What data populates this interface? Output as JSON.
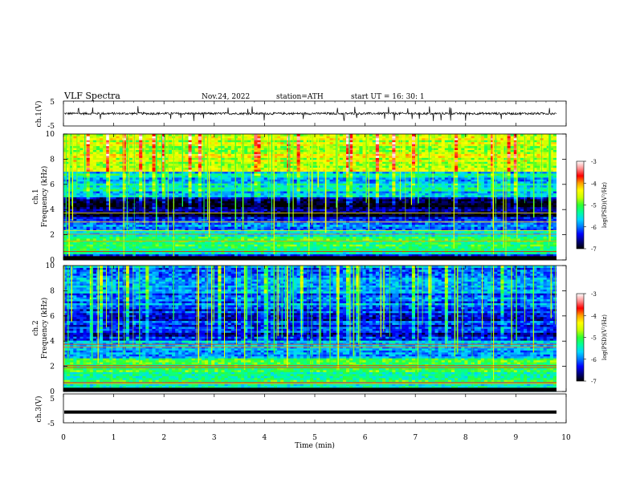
{
  "header": {
    "title": "VLF  Spectra",
    "date": "Nov.24, 2022",
    "station": "station=ATH",
    "start": "start  UT  =   16: 30: 1"
  },
  "colors": {
    "ink": "#000000",
    "colormap": [
      "#000000",
      "#00007a",
      "#0000ff",
      "#0078ff",
      "#00d7ff",
      "#00ff9a",
      "#30ff30",
      "#c8ff00",
      "#ffff00",
      "#ffa000",
      "#ff0000",
      "#ff9090",
      "#ffffff"
    ]
  },
  "chart_data": [
    {
      "type": "line",
      "ylabel": "ch.1(V)",
      "ylim": [
        -5,
        5
      ],
      "yticks": [
        "5",
        "-5"
      ],
      "xlim": [
        0,
        10
      ],
      "description_values": {
        "baseline": 0,
        "typical_amplitude": 1,
        "spike_max": 3
      }
    },
    {
      "type": "heatmap",
      "ylabel": "ch.1\nFrequency (kHz)",
      "ylabel_lines": [
        "ch.1",
        "Frequency (kHz)"
      ],
      "ylim": [
        0,
        10
      ],
      "yticks": [
        "0",
        "2",
        "4",
        "6",
        "8",
        "10"
      ],
      "xlim": [
        0,
        10
      ],
      "colorbar": {
        "label": "log(PSD)(V²/Hz)",
        "range": [
          -7,
          -3
        ],
        "ticks": [
          "-3",
          "-4",
          "-5",
          "-6",
          "-7"
        ]
      },
      "bands": [
        {
          "from": 0,
          "to": 0.5,
          "level": -6.5
        },
        {
          "from": 0.5,
          "to": 2.3,
          "level": -5.3
        },
        {
          "from": 2.3,
          "to": 3.5,
          "level": -6.1
        },
        {
          "from": 3.5,
          "to": 5.0,
          "level": -6.8
        },
        {
          "from": 5.0,
          "to": 7.0,
          "level": -5.6
        },
        {
          "from": 7.0,
          "to": 10.0,
          "level": -4.6
        }
      ]
    },
    {
      "type": "heatmap",
      "ylabel": "ch.2\nFrequency (kHz)",
      "ylabel_lines": [
        "ch.2",
        "Frequency (kHz)"
      ],
      "ylim": [
        0,
        10
      ],
      "yticks": [
        "0",
        "2",
        "4",
        "6",
        "8",
        "10"
      ],
      "xlim": [
        0,
        10
      ],
      "colorbar": {
        "label": "log(PSD)(V²/Hz)",
        "range": [
          -7,
          -3
        ],
        "ticks": [
          "-3",
          "-4",
          "-5",
          "-6",
          "-7"
        ]
      },
      "bands": [
        {
          "from": 0,
          "to": 0.6,
          "level": -5.6
        },
        {
          "from": 0.6,
          "to": 2.6,
          "level": -5.2
        },
        {
          "from": 2.6,
          "to": 4.0,
          "level": -5.7
        },
        {
          "from": 4.0,
          "to": 6.5,
          "level": -6.3
        },
        {
          "from": 6.5,
          "to": 10.0,
          "level": -6.0
        }
      ]
    },
    {
      "type": "line",
      "ylabel": "ch.3(V)",
      "ylim": [
        -5,
        5
      ],
      "yticks": [
        "5",
        "-5"
      ],
      "xlim": [
        0,
        10
      ],
      "xlabel": "Time  (min)",
      "xticks": [
        "0",
        "1",
        "2",
        "3",
        "4",
        "5",
        "6",
        "7",
        "8",
        "9",
        "10"
      ],
      "description_values": {
        "level": -1.3
      }
    }
  ]
}
